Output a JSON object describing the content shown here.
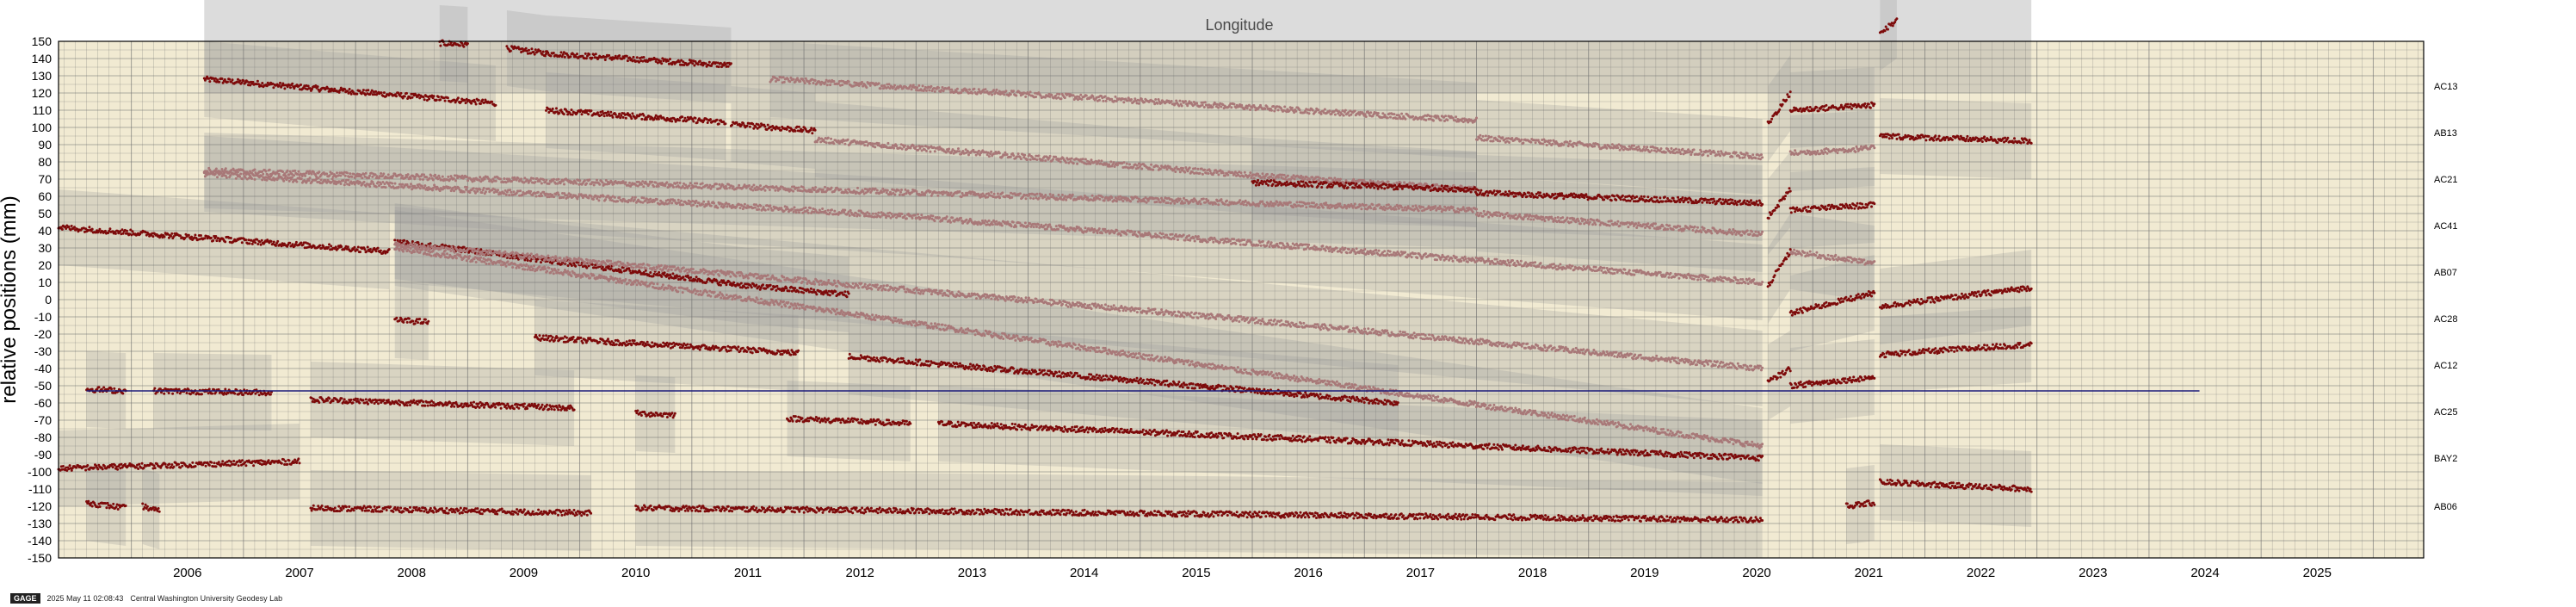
{
  "chart_data": {
    "type": "scatter",
    "title": "Longitude",
    "ylabel": "relative positions (mm)",
    "xlabel": "",
    "xlim": [
      2005.35,
      2026.45
    ],
    "ylim": [
      -150,
      150
    ],
    "ytick_step": 10,
    "xticks": [
      "2006",
      "2007",
      "2008",
      "2009",
      "2010",
      "2011",
      "2012",
      "2013",
      "2014",
      "2015",
      "2016",
      "2017",
      "2018",
      "2019",
      "2020",
      "2021",
      "2022",
      "2023",
      "2024",
      "2025"
    ],
    "grid": true,
    "legend": "none",
    "reference_line": {
      "y": -53,
      "x0": 2005.6,
      "x1": 2024.45,
      "color": "#1a1a7a"
    },
    "colors": {
      "background": "#f1ead2",
      "band": "#9b9b9b",
      "highlight": "#7d0b0b",
      "faded": "#a87878",
      "grid": "#6f6f6f"
    },
    "site_labels": [
      {
        "name": "AC13",
        "y": 124
      },
      {
        "name": "AB13",
        "y": 97
      },
      {
        "name": "AC21",
        "y": 70
      },
      {
        "name": "AC41",
        "y": 43
      },
      {
        "name": "AB07",
        "y": 16
      },
      {
        "name": "AC28",
        "y": -11
      },
      {
        "name": "AC12",
        "y": -38
      },
      {
        "name": "AC25",
        "y": -65
      },
      {
        "name": "BAY2",
        "y": -92
      },
      {
        "name": "AB06",
        "y": -120
      }
    ],
    "series": [
      {
        "style": "dark",
        "segments": [
          {
            "x": [
              2006.65,
              2009.25
            ],
            "y": [
              128,
              114
            ]
          }
        ]
      },
      {
        "style": "dark",
        "segments": [
          {
            "x": [
              2009.35,
              2009.7
            ],
            "y": [
              146,
              143
            ]
          },
          {
            "x": [
              2009.7,
              2011.35
            ],
            "y": [
              143,
              136
            ]
          },
          {
            "x": [
              2008.75,
              2009.0
            ],
            "y": [
              149,
              148
            ]
          }
        ]
      },
      {
        "style": "faded",
        "segments": [
          {
            "x": [
              2011.7,
              2018.0
            ],
            "y": [
              128,
              104
            ]
          },
          {
            "x": [
              2018.0,
              2020.55
            ],
            "y": [
              94,
              83
            ]
          }
        ]
      },
      {
        "style": "dark",
        "segments": [
          {
            "x": [
              2009.7,
              2011.3
            ],
            "y": [
              110,
              103
            ]
          },
          {
            "x": [
              2011.35,
              2012.1
            ],
            "y": [
              102,
              98
            ]
          }
        ]
      },
      {
        "style": "faded",
        "segments": [
          {
            "x": [
              2012.1,
              2016.0
            ],
            "y": [
              93,
              72
            ]
          },
          {
            "x": [
              2016.0,
              2018.0
            ],
            "y": [
              72,
              64
            ]
          }
        ]
      },
      {
        "style": "dark",
        "segments": [
          {
            "x": [
              2016.0,
              2018.0
            ],
            "y": [
              68,
              64
            ]
          },
          {
            "x": [
              2018.0,
              2020.55
            ],
            "y": [
              62,
              56
            ]
          }
        ]
      },
      {
        "style": "faded",
        "segments": [
          {
            "x": [
              2006.65,
              2018.0
            ],
            "y": [
              75,
              52
            ]
          },
          {
            "x": [
              2018.0,
              2020.55
            ],
            "y": [
              50,
              38
            ]
          }
        ]
      },
      {
        "style": "faded",
        "segments": [
          {
            "x": [
              2006.65,
              2013.0
            ],
            "y": [
              73,
              48
            ]
          },
          {
            "x": [
              2013.0,
              2020.55
            ],
            "y": [
              48,
              10
            ]
          }
        ]
      },
      {
        "style": "dark",
        "segments": [
          {
            "x": [
              2005.35,
              2008.3
            ],
            "y": [
              42,
              28
            ]
          }
        ]
      },
      {
        "style": "dark",
        "segments": [
          {
            "x": [
              2008.35,
              2011.5
            ],
            "y": [
              34,
              8
            ]
          },
          {
            "x": [
              2011.5,
              2012.4
            ],
            "y": [
              8,
              3
            ]
          }
        ]
      },
      {
        "style": "faded",
        "segments": [
          {
            "x": [
              2008.35,
              2016.0
            ],
            "y": [
              32,
              -12
            ]
          },
          {
            "x": [
              2016.0,
              2020.55
            ],
            "y": [
              -12,
              -40
            ]
          }
        ]
      },
      {
        "style": "faded",
        "segments": [
          {
            "x": [
              2008.35,
              2020.55
            ],
            "y": [
              30,
              -85
            ]
          }
        ]
      },
      {
        "style": "dark",
        "segments": [
          {
            "x": [
              2008.35,
              2008.65
            ],
            "y": [
              -12,
              -13
            ]
          }
        ]
      },
      {
        "style": "dark",
        "segments": [
          {
            "x": [
              2009.6,
              2011.95
            ],
            "y": [
              -22,
              -31
            ]
          }
        ]
      },
      {
        "style": "dark",
        "segments": [
          {
            "x": [
              2012.4,
              2017.3
            ],
            "y": [
              -33,
              -60
            ]
          }
        ]
      },
      {
        "style": "dark",
        "segments": [
          {
            "x": [
              2005.6,
              2005.95
            ],
            "y": [
              -52,
              -53
            ]
          },
          {
            "x": [
              2006.2,
              2007.25
            ],
            "y": [
              -53,
              -54
            ]
          },
          {
            "x": [
              2007.6,
              2009.95
            ],
            "y": [
              -58,
              -63
            ]
          },
          {
            "x": [
              2010.5,
              2010.85
            ],
            "y": [
              -66,
              -67
            ]
          },
          {
            "x": [
              2011.85,
              2012.95
            ],
            "y": [
              -69,
              -72
            ]
          },
          {
            "x": [
              2013.2,
              2020.55
            ],
            "y": [
              -72,
              -92
            ]
          }
        ]
      },
      {
        "style": "dark",
        "segments": [
          {
            "x": [
              2005.35,
              2007.5
            ],
            "y": [
              -98,
              -94
            ]
          }
        ]
      },
      {
        "style": "dark",
        "segments": [
          {
            "x": [
              2005.6,
              2005.95
            ],
            "y": [
              -118,
              -121
            ]
          },
          {
            "x": [
              2006.1,
              2006.25
            ],
            "y": [
              -120,
              -123
            ]
          },
          {
            "x": [
              2007.6,
              2010.1
            ],
            "y": [
              -121,
              -124
            ]
          },
          {
            "x": [
              2010.5,
              2020.55
            ],
            "y": [
              -121,
              -128
            ]
          }
        ]
      },
      {
        "style": "dark",
        "segments": [
          {
            "x": [
              2020.6,
              2020.8
            ],
            "y": [
              102,
              120
            ]
          },
          {
            "x": [
              2020.8,
              2021.55
            ],
            "y": [
              110,
              113
            ]
          }
        ]
      },
      {
        "style": "faded",
        "segments": [
          {
            "x": [
              2020.8,
              2021.55
            ],
            "y": [
              85,
              88
            ]
          }
        ]
      },
      {
        "style": "dark",
        "segments": [
          {
            "x": [
              2020.6,
              2020.8
            ],
            "y": [
              48,
              64
            ]
          },
          {
            "x": [
              2020.8,
              2021.55
            ],
            "y": [
              52,
              55
            ]
          }
        ]
      },
      {
        "style": "faded",
        "segments": [
          {
            "x": [
              2020.8,
              2021.55
            ],
            "y": [
              28,
              21
            ]
          }
        ]
      },
      {
        "style": "dark",
        "segments": [
          {
            "x": [
              2020.6,
              2020.8
            ],
            "y": [
              8,
              28
            ]
          },
          {
            "x": [
              2020.8,
              2021.55
            ],
            "y": [
              -8,
              4
            ]
          }
        ]
      },
      {
        "style": "dark",
        "segments": [
          {
            "x": [
              2020.6,
              2020.8
            ],
            "y": [
              -48,
              -40
            ]
          },
          {
            "x": [
              2020.8,
              2021.55
            ],
            "y": [
              -50,
              -45
            ]
          }
        ]
      },
      {
        "style": "dark",
        "segments": [
          {
            "x": [
              2021.3,
              2021.55
            ],
            "y": [
              -120,
              -118
            ]
          }
        ]
      },
      {
        "style": "dark",
        "segments": [
          {
            "x": [
              2021.6,
              2021.75
            ],
            "y": [
              155,
              162
            ]
          }
        ]
      },
      {
        "style": "dark",
        "segments": [
          {
            "x": [
              2021.6,
              2022.95
            ],
            "y": [
              95,
              92
            ]
          }
        ]
      },
      {
        "style": "dark",
        "segments": [
          {
            "x": [
              2021.6,
              2022.95
            ],
            "y": [
              -4,
              7
            ]
          }
        ]
      },
      {
        "style": "dark",
        "segments": [
          {
            "x": [
              2021.6,
              2022.95
            ],
            "y": [
              -32,
              -26
            ]
          }
        ]
      },
      {
        "style": "dark",
        "segments": [
          {
            "x": [
              2021.6,
              2022.95
            ],
            "y": [
              -106,
              -110
            ]
          }
        ]
      }
    ]
  },
  "footer": {
    "badge": "GAGE",
    "timestamp": "2025 May 11 02:08:43",
    "institution": "Central Washington University Geodesy Lab"
  }
}
